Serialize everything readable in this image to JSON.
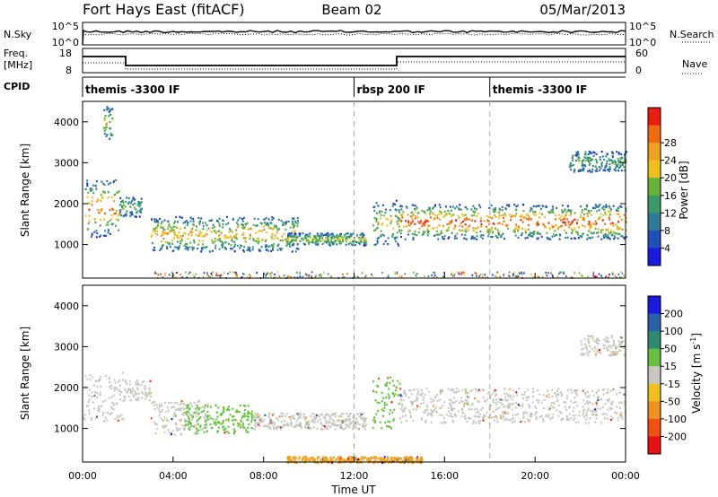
{
  "header": {
    "title": "Fort Hays East (fitACF)",
    "beam": "Beam 02",
    "date": "05/Mar/2013"
  },
  "panels": {
    "nsky": {
      "label": "N.Sky",
      "tick_top": "10^5",
      "tick_bottom": "10^0",
      "right_label": "N.Search",
      "right_tick_top": "10^5",
      "right_tick_bottom": "10^0"
    },
    "freq": {
      "label_top": "Freq.",
      "label_bottom": "[MHz]",
      "tick_top": "18",
      "tick_bottom": "8",
      "right_label": "Nave",
      "right_tick_top": "60",
      "right_tick_bottom": "0"
    },
    "cpid": {
      "label": "CPID",
      "segments": [
        {
          "label": "themis -3300 IF",
          "start_hour": 0
        },
        {
          "label": "rbsp 200 IF",
          "start_hour": 12
        },
        {
          "label": "themis -3300 IF",
          "start_hour": 18
        }
      ]
    }
  },
  "chart_data": [
    {
      "type": "heatmap",
      "name": "power",
      "ylabel": "Slant Range [km]",
      "xlabel": "",
      "x_range_hours": [
        0,
        24
      ],
      "ylim": [
        180,
        4500
      ],
      "y_ticks": [
        "1000",
        "2000",
        "3000",
        "4000"
      ],
      "colorbar": {
        "label": "Power [dB]",
        "ticks": [
          "4",
          "8",
          "12",
          "16",
          "20",
          "24",
          "28"
        ],
        "colors": [
          "#1a1adc",
          "#1f4fb8",
          "#2f7a98",
          "#3a9a6a",
          "#66b33a",
          "#f0c020",
          "#f0a020",
          "#f06a10",
          "#e81e10"
        ]
      },
      "echo_regions": [
        {
          "t0": 0.1,
          "t1": 1.6,
          "r0": 1200,
          "r1": 2600,
          "level": 0.75
        },
        {
          "t0": 0.8,
          "t1": 1.3,
          "r0": 3600,
          "r1": 4400,
          "level": 0.5
        },
        {
          "t0": 1.6,
          "t1": 2.6,
          "r0": 1700,
          "r1": 2200,
          "level": 0.35
        },
        {
          "t0": 3.0,
          "t1": 9.5,
          "r0": 850,
          "r1": 1700,
          "level": 0.6
        },
        {
          "t0": 9.0,
          "t1": 12.5,
          "r0": 1000,
          "r1": 1300,
          "level": 0.45
        },
        {
          "t0": 12.8,
          "t1": 14.0,
          "r0": 1000,
          "r1": 2100,
          "level": 0.5
        },
        {
          "t0": 14.0,
          "t1": 24.0,
          "r0": 1150,
          "r1": 2000,
          "level": 0.85
        },
        {
          "t0": 21.5,
          "t1": 24.0,
          "r0": 2800,
          "r1": 3300,
          "level": 0.3
        }
      ]
    },
    {
      "type": "heatmap",
      "name": "velocity",
      "ylabel": "Slant Range [km]",
      "xlabel": "Time UT",
      "x_range_hours": [
        0,
        24
      ],
      "x_ticks": [
        "00:00",
        "04:00",
        "08:00",
        "12:00",
        "16:00",
        "20:00",
        "00:00"
      ],
      "ylim": [
        180,
        4500
      ],
      "y_ticks": [
        "1000",
        "2000",
        "3000",
        "4000"
      ],
      "colorbar": {
        "label_main": "Velocity [m s",
        "label_sup": "-1",
        "label_end": "]",
        "ticks": [
          "200",
          "100",
          "50",
          "15",
          "-15",
          "-50",
          "-100",
          "-200"
        ],
        "colors": [
          "#1a1adc",
          "#2a60a8",
          "#2e8a70",
          "#66c040",
          "#c8c8c0",
          "#f0c020",
          "#f09020",
          "#f05010",
          "#e81010"
        ]
      },
      "echo_regions": [
        {
          "t0": 0.0,
          "t1": 1.8,
          "r0": 1200,
          "r1": 2400,
          "color": "#c8c8c0"
        },
        {
          "t0": 1.8,
          "t1": 3.0,
          "r0": 1700,
          "r1": 2200,
          "color": "#c8c8c0"
        },
        {
          "t0": 3.0,
          "t1": 5.5,
          "r0": 850,
          "r1": 1700,
          "color": "#c8c8c0"
        },
        {
          "t0": 4.5,
          "t1": 7.5,
          "r0": 900,
          "r1": 1600,
          "color": "#66c040"
        },
        {
          "t0": 7.5,
          "t1": 12.5,
          "r0": 1000,
          "r1": 1400,
          "color": "#c8c8c0"
        },
        {
          "t0": 12.8,
          "t1": 14.0,
          "r0": 1000,
          "r1": 2300,
          "color": "#66c040"
        },
        {
          "t0": 14.0,
          "t1": 24.0,
          "r0": 1150,
          "r1": 2000,
          "color": "#c8c8c0"
        },
        {
          "t0": 22.0,
          "t1": 24.0,
          "r0": 2800,
          "r1": 3300,
          "color": "#c8c8c0"
        },
        {
          "t0": 9.0,
          "t1": 15.0,
          "r0": 180,
          "r1": 330,
          "color": "#f0a020"
        }
      ]
    }
  ]
}
